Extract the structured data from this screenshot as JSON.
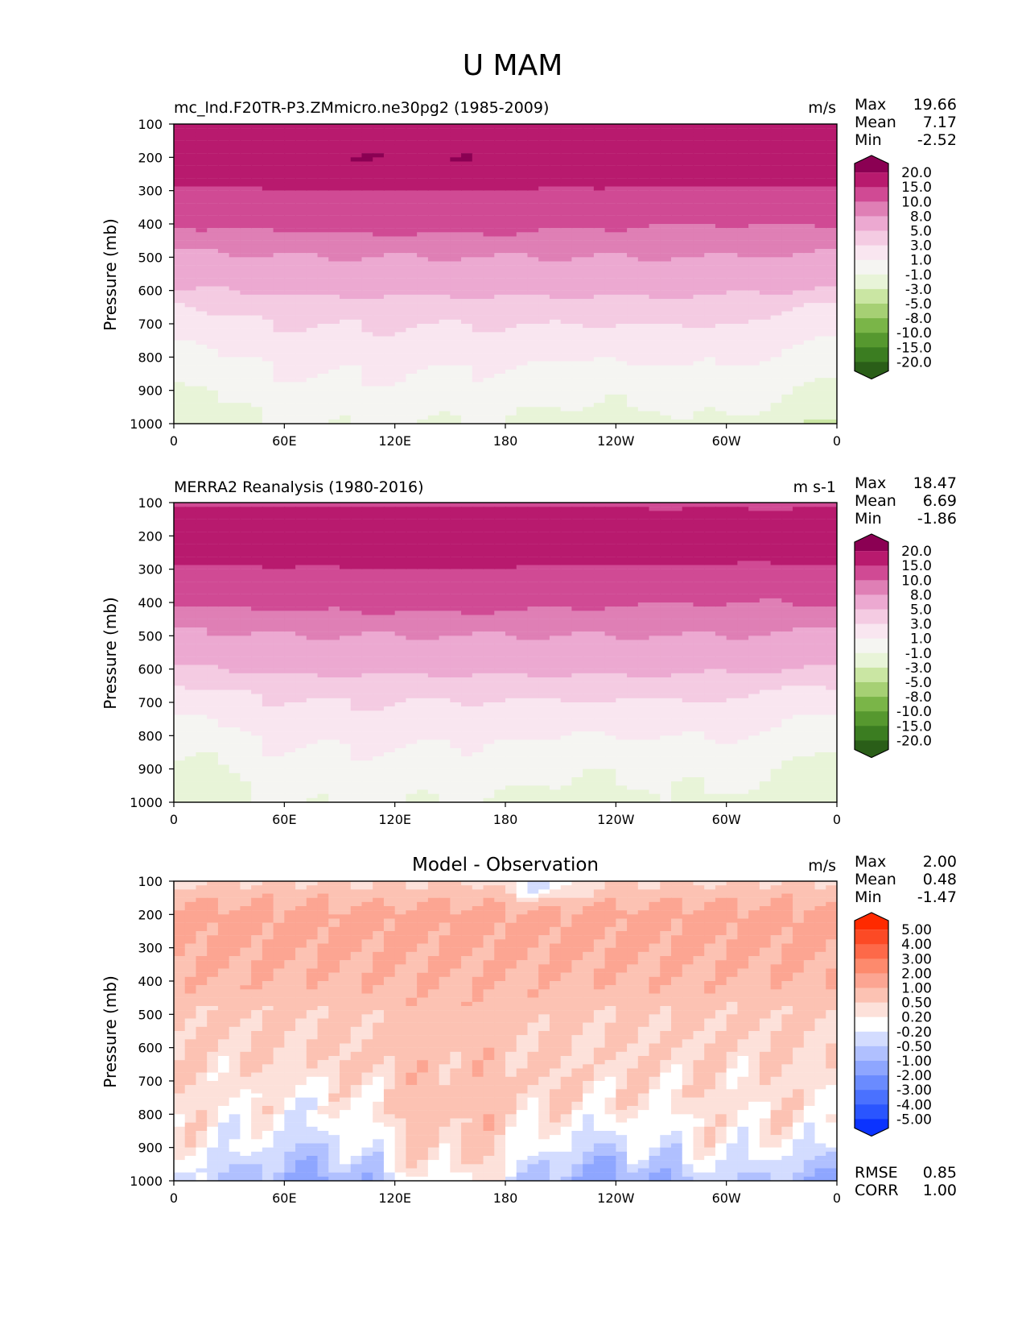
{
  "figure_title": "U MAM",
  "colors": {
    "abs_levels": [
      "#2a5e18",
      "#3b7d21",
      "#56982f",
      "#7ab548",
      "#a6d074",
      "#cae6a3",
      "#e8f4d8",
      "#f5f5f2",
      "#f9e6f0",
      "#f4cbe2",
      "#eca9d1",
      "#df7fb5",
      "#d04a94",
      "#b81a6e",
      "#8b0053"
    ],
    "diff_levels": [
      "#0b33ff",
      "#2a55ff",
      "#4a71ff",
      "#6a8bff",
      "#8ea6ff",
      "#b0c0ff",
      "#d3dcff",
      "#ffffff",
      "#fde1da",
      "#fcc2b3",
      "#fca592",
      "#fd8a6d",
      "#fd6949",
      "#fc4a25",
      "#ff2a00"
    ]
  },
  "panels": [
    {
      "title_left": "mc_lnd.F20TR-P3.ZMmicro.ne30pg2 (1985-2009)",
      "title_center": "",
      "units": "m/s",
      "stats": [
        {
          "label": "Max",
          "value": "19.66"
        },
        {
          "label": "Mean",
          "value": "7.17"
        },
        {
          "label": "Min",
          "value": "-2.52"
        }
      ],
      "colorbar_labels": [
        "20.0",
        "15.0",
        "10.0",
        "8.0",
        "5.0",
        "3.0",
        "1.0",
        "-1.0",
        "-3.0",
        "-5.0",
        "-8.0",
        "-10.0",
        "-15.0",
        "-20.0"
      ],
      "extra_stats": []
    },
    {
      "title_left": "MERRA2 Reanalysis (1980-2016)",
      "title_center": "",
      "units": "m s-1",
      "stats": [
        {
          "label": "Max",
          "value": "18.47"
        },
        {
          "label": "Mean",
          "value": "6.69"
        },
        {
          "label": "Min",
          "value": "-1.86"
        }
      ],
      "colorbar_labels": [
        "20.0",
        "15.0",
        "10.0",
        "8.0",
        "5.0",
        "3.0",
        "1.0",
        "-1.0",
        "-3.0",
        "-5.0",
        "-8.0",
        "-10.0",
        "-15.0",
        "-20.0"
      ],
      "extra_stats": []
    },
    {
      "title_left": "",
      "title_center": "Model - Observation",
      "units": "m/s",
      "stats": [
        {
          "label": "Max",
          "value": "2.00"
        },
        {
          "label": "Mean",
          "value": "0.48"
        },
        {
          "label": "Min",
          "value": "-1.47"
        }
      ],
      "colorbar_labels": [
        "5.00",
        "4.00",
        "3.00",
        "2.00",
        "1.00",
        "0.50",
        "0.20",
        "-0.20",
        "-0.50",
        "-1.00",
        "-2.00",
        "-3.00",
        "-4.00",
        "-5.00"
      ],
      "extra_stats": [
        {
          "label": "RMSE",
          "value": "0.85"
        },
        {
          "label": "CORR",
          "value": "1.00"
        }
      ]
    }
  ],
  "chart_data": {
    "type": "contourf",
    "title": "U MAM",
    "xlabel": "",
    "ylabel": "Pressure (mb)",
    "x_ticks": [
      "0",
      "60E",
      "120E",
      "180",
      "120W",
      "60W",
      "0"
    ],
    "x_tick_values": [
      0,
      60,
      120,
      180,
      240,
      300,
      360
    ],
    "y_ticks": [
      "100",
      "200",
      "300",
      "400",
      "500",
      "600",
      "700",
      "800",
      "900",
      "1000"
    ],
    "y_tick_values": [
      100,
      200,
      300,
      400,
      500,
      600,
      700,
      800,
      900,
      1000
    ],
    "xlim": [
      0,
      360
    ],
    "ylim": [
      1000,
      100
    ],
    "abs_boundaries": [
      -20,
      -15,
      -10,
      -8,
      -5,
      -3,
      -1,
      1,
      3,
      5,
      8,
      10,
      15,
      20
    ],
    "diff_boundaries": [
      -5,
      -4,
      -3,
      -2,
      -1,
      -0.5,
      -0.2,
      0.2,
      0.5,
      1,
      2,
      3,
      4,
      5
    ],
    "abs_fields": [
      {
        "name": "model",
        "profile_pressure": [
          100,
          150,
          200,
          250,
          280,
          300,
          350,
          400,
          450,
          500,
          550,
          600,
          650,
          700,
          750,
          800,
          850,
          900,
          950,
          1000
        ],
        "profile_u": [
          15.5,
          18.5,
          19.5,
          18.5,
          17,
          14,
          12,
          10.5,
          9,
          8,
          7,
          5.5,
          4,
          3.2,
          2.5,
          1.8,
          1.2,
          0.6,
          0.1,
          -0.5
        ]
      },
      {
        "name": "observation",
        "profile_pressure": [
          100,
          150,
          200,
          250,
          280,
          300,
          350,
          400,
          450,
          500,
          550,
          600,
          650,
          700,
          750,
          800,
          850,
          900,
          950,
          1000
        ],
        "profile_u": [
          14,
          17.5,
          18.5,
          17,
          16,
          14,
          12,
          10.5,
          9,
          8,
          7,
          5.5,
          4,
          3,
          2.3,
          1.6,
          1,
          0.4,
          0,
          -0.4
        ]
      }
    ],
    "diff_field": {
      "name": "model_minus_observation",
      "profile_pressure": [
        100,
        200,
        300,
        400,
        500,
        600,
        700,
        800,
        900,
        1000
      ],
      "profile_du": [
        0.5,
        1.2,
        1.1,
        0.9,
        0.6,
        0.5,
        0.4,
        0.3,
        0.1,
        -0.4
      ]
    }
  }
}
